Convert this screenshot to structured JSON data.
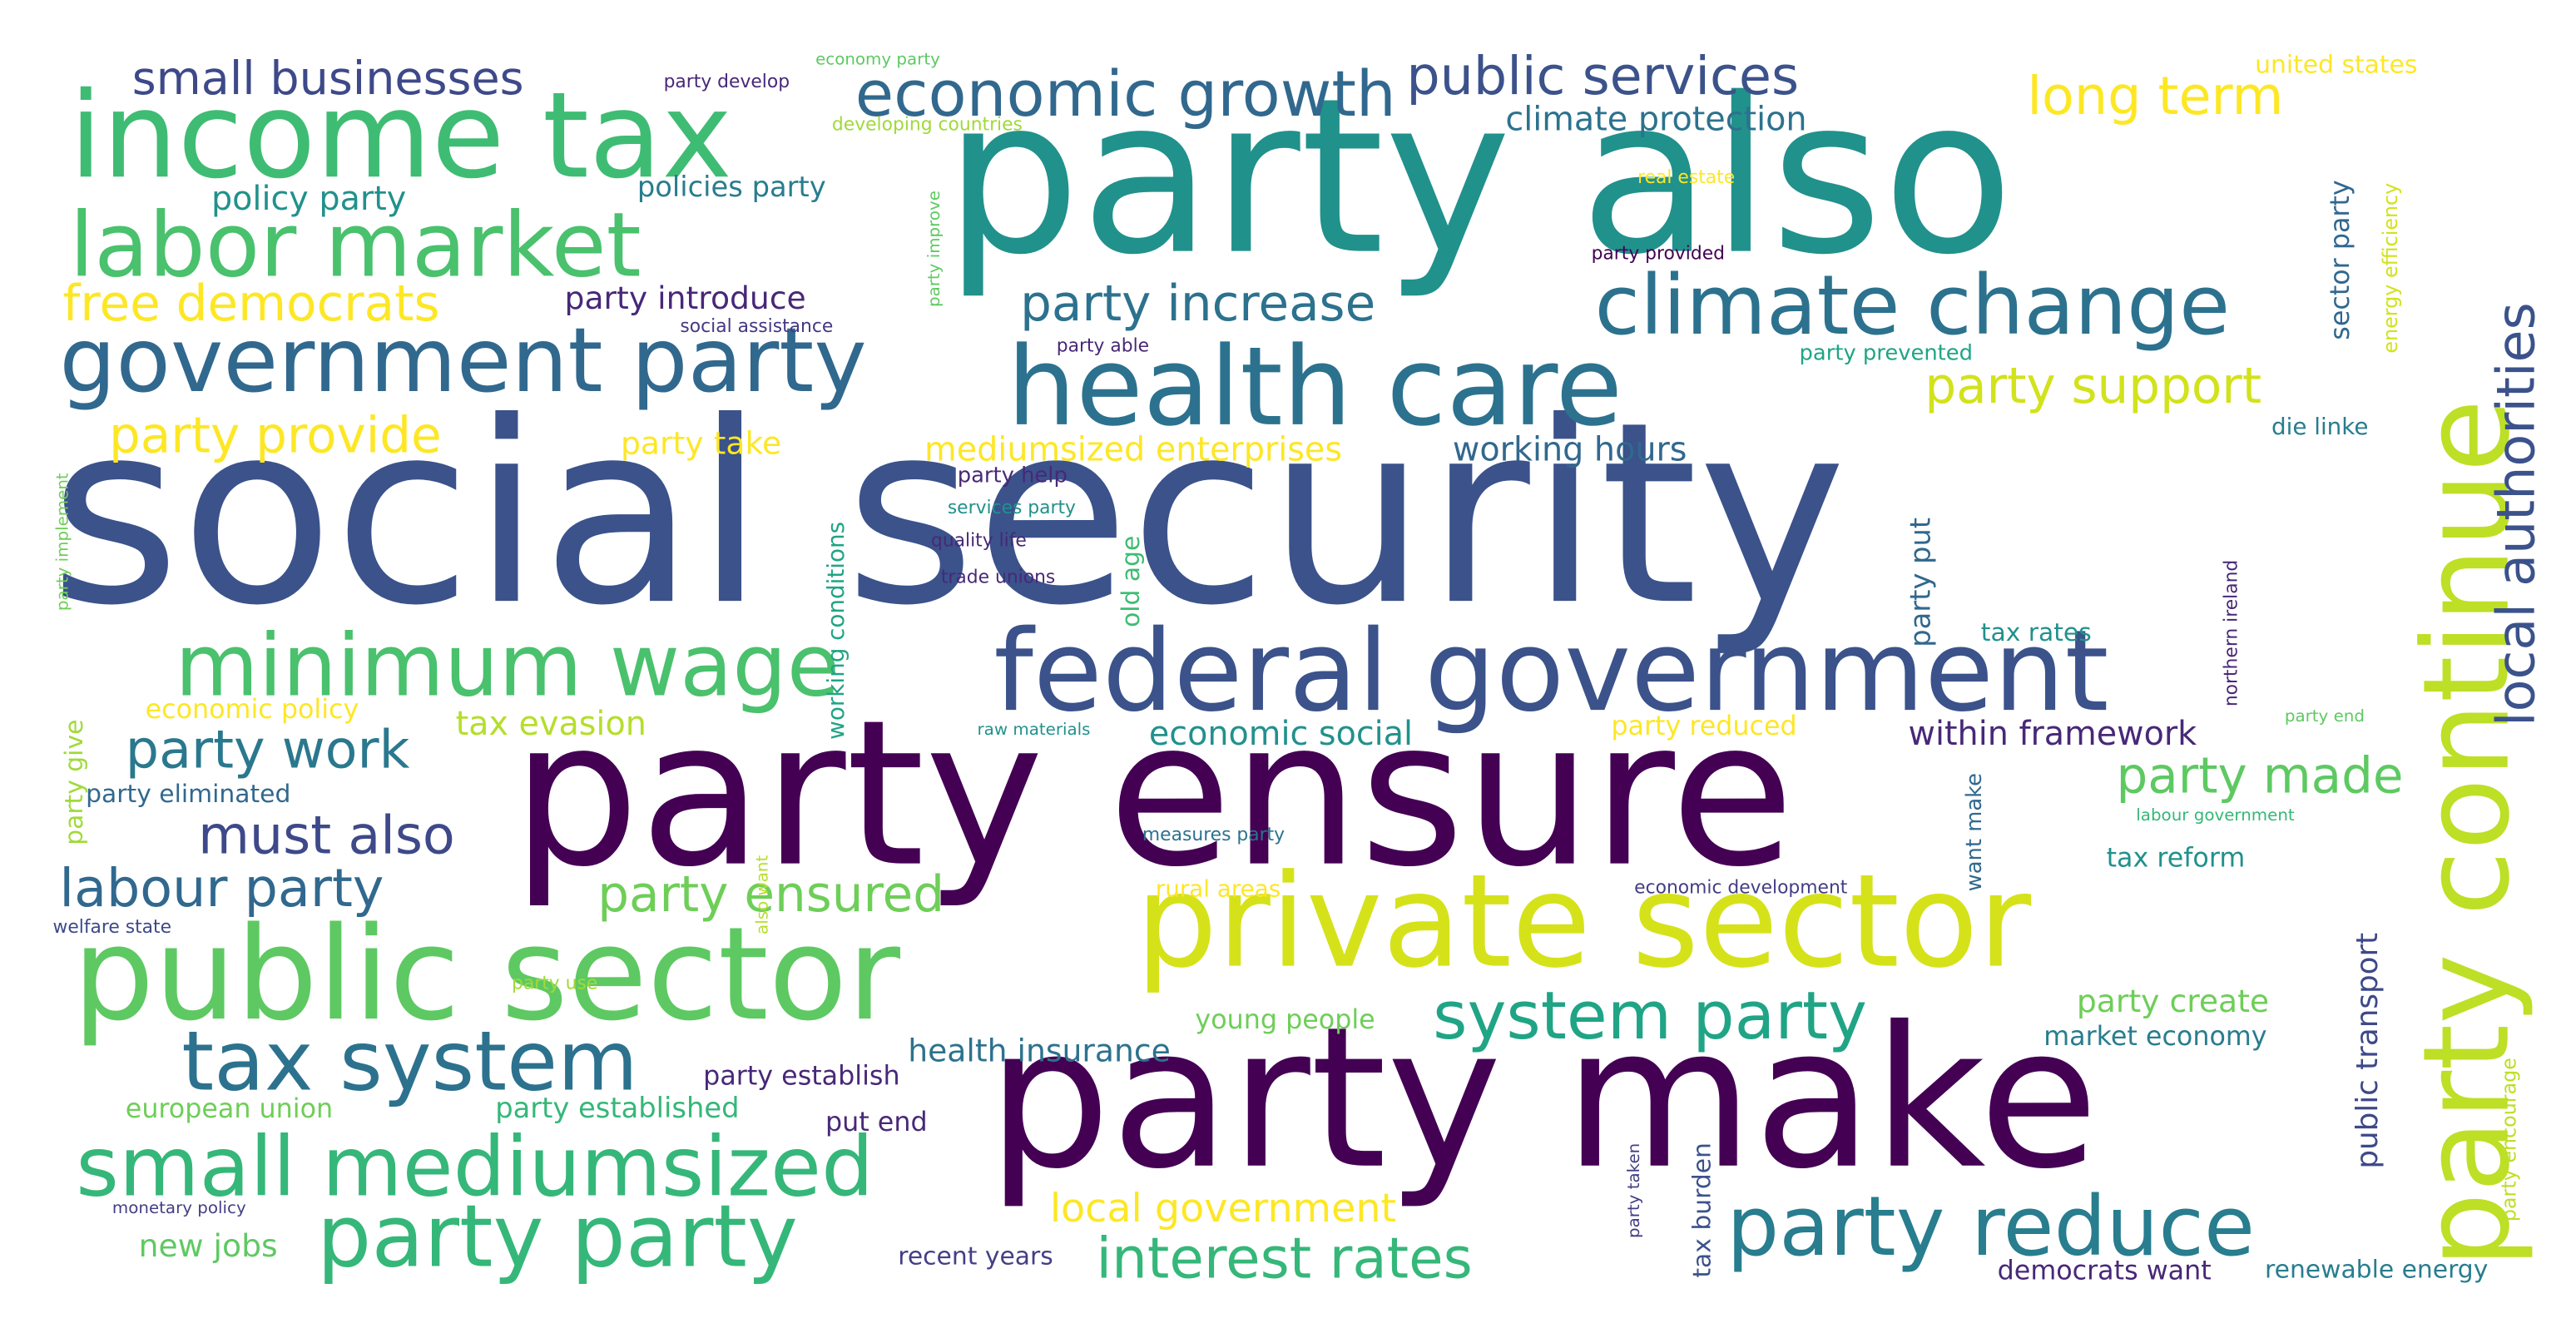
{
  "words": [
    {
      "text": "social security",
      "color": "#3b528b"
    },
    {
      "text": "party also",
      "color": "#21918c"
    },
    {
      "text": "party ensure",
      "color": "#440154"
    },
    {
      "text": "party make",
      "color": "#440154"
    },
    {
      "text": "private sector",
      "color": "#d5e21a"
    },
    {
      "text": "public sector",
      "color": "#5ec962"
    },
    {
      "text": "income tax",
      "color": "#3fbc73"
    },
    {
      "text": "health care",
      "color": "#2c728e"
    },
    {
      "text": "federal government",
      "color": "#3b528b"
    },
    {
      "text": "party continue",
      "color": "#bddf26"
    },
    {
      "text": "labor market",
      "color": "#4ac16d"
    },
    {
      "text": "government party",
      "color": "#31688e"
    },
    {
      "text": "climate change",
      "color": "#2c728e"
    },
    {
      "text": "minimum wage",
      "color": "#4ac16d"
    },
    {
      "text": "small mediumsized",
      "color": "#35b779"
    },
    {
      "text": "party party",
      "color": "#35b779"
    },
    {
      "text": "tax system",
      "color": "#2c728e"
    },
    {
      "text": "party reduce",
      "color": "#287d8e"
    },
    {
      "text": "system party",
      "color": "#20a486"
    },
    {
      "text": "economic growth",
      "color": "#31688e"
    },
    {
      "text": "public services",
      "color": "#3b528b"
    },
    {
      "text": "local authorities",
      "color": "#3b528b"
    },
    {
      "text": "interest rates",
      "color": "#35b779"
    },
    {
      "text": "party ensured",
      "color": "#6ece58"
    },
    {
      "text": "small businesses",
      "color": "#3e4989"
    },
    {
      "text": "long term",
      "color": "#fde725"
    },
    {
      "text": "party increase",
      "color": "#2c728e"
    },
    {
      "text": "party support",
      "color": "#d2e21b"
    },
    {
      "text": "free democrats",
      "color": "#fde725"
    },
    {
      "text": "party provide",
      "color": "#fde725"
    },
    {
      "text": "party work",
      "color": "#2a788e"
    },
    {
      "text": "must also",
      "color": "#3e4989"
    },
    {
      "text": "labour party",
      "color": "#31688e"
    },
    {
      "text": "party made",
      "color": "#5ec962"
    },
    {
      "text": "local government",
      "color": "#fde725"
    },
    {
      "text": "mediumsized enterprises",
      "color": "#fde725"
    },
    {
      "text": "working hours",
      "color": "#31688e"
    },
    {
      "text": "climate protection",
      "color": "#2c728e"
    },
    {
      "text": "policy party",
      "color": "#21918c"
    },
    {
      "text": "policies party",
      "color": "#287d8e"
    },
    {
      "text": "party introduce",
      "color": "#482878"
    },
    {
      "text": "party take",
      "color": "#fde725"
    },
    {
      "text": "tax evasion",
      "color": "#b5de2b"
    },
    {
      "text": "economic policy",
      "color": "#fde725"
    },
    {
      "text": "economic social",
      "color": "#21918c"
    },
    {
      "text": "within framework",
      "color": "#482878"
    },
    {
      "text": "party reduced",
      "color": "#fde725"
    },
    {
      "text": "tax reform",
      "color": "#21918c"
    },
    {
      "text": "party create",
      "color": "#6ece58"
    },
    {
      "text": "market economy",
      "color": "#287d8e"
    },
    {
      "text": "health insurance",
      "color": "#2c728e"
    },
    {
      "text": "party establish",
      "color": "#482878"
    },
    {
      "text": "party established",
      "color": "#35b779"
    },
    {
      "text": "european union",
      "color": "#6ece58"
    },
    {
      "text": "young people",
      "color": "#6ece58"
    },
    {
      "text": "rural areas",
      "color": "#fde725"
    },
    {
      "text": "put end",
      "color": "#482878"
    },
    {
      "text": "new jobs",
      "color": "#5ec962"
    },
    {
      "text": "recent years",
      "color": "#433e85"
    },
    {
      "text": "democrats want",
      "color": "#482878"
    },
    {
      "text": "renewable energy",
      "color": "#287d8e"
    },
    {
      "text": "tax rates",
      "color": "#21918c"
    },
    {
      "text": "die linke",
      "color": "#287d8e"
    },
    {
      "text": "united states",
      "color": "#fde725"
    },
    {
      "text": "party eliminated",
      "color": "#31688e"
    },
    {
      "text": "party help",
      "color": "#482878"
    },
    {
      "text": "party prevented",
      "color": "#20a486"
    },
    {
      "text": "party develop",
      "color": "#482878"
    },
    {
      "text": "economy party",
      "color": "#5ec962"
    },
    {
      "text": "developing countries",
      "color": "#a0da39"
    },
    {
      "text": "real estate",
      "color": "#fde725"
    },
    {
      "text": "party provided",
      "color": "#440154"
    },
    {
      "text": "social assistance",
      "color": "#443983"
    },
    {
      "text": "party able",
      "color": "#482878"
    },
    {
      "text": "services party",
      "color": "#21918c"
    },
    {
      "text": "quality life",
      "color": "#482878"
    },
    {
      "text": "trade unions",
      "color": "#482878"
    },
    {
      "text": "raw materials",
      "color": "#21918c"
    },
    {
      "text": "measures party",
      "color": "#2c728e"
    },
    {
      "text": "economic development",
      "color": "#433e85"
    },
    {
      "text": "labour government",
      "color": "#35b779"
    },
    {
      "text": "party end",
      "color": "#5ec962"
    },
    {
      "text": "welfare state",
      "color": "#3e4989"
    },
    {
      "text": "party use",
      "color": "#a0da39"
    },
    {
      "text": "monetary policy",
      "color": "#433e85"
    },
    {
      "text": "public transport",
      "color": "#3e4989"
    },
    {
      "text": "sector party",
      "color": "#31688e"
    },
    {
      "text": "energy efficiency",
      "color": "#d2e21b"
    },
    {
      "text": "party put",
      "color": "#31688e"
    },
    {
      "text": "northern ireland",
      "color": "#482878"
    },
    {
      "text": "want make",
      "color": "#31688e"
    },
    {
      "text": "party encourage",
      "color": "#bddf26"
    },
    {
      "text": "tax burden",
      "color": "#3b528b"
    },
    {
      "text": "party taken",
      "color": "#433e85"
    },
    {
      "text": "old age",
      "color": "#3fbc73"
    },
    {
      "text": "working conditions",
      "color": "#20a486"
    },
    {
      "text": "party improve",
      "color": "#5ec962"
    },
    {
      "text": "party implement",
      "color": "#6ece58"
    },
    {
      "text": "party give",
      "color": "#a0da39"
    },
    {
      "text": "also want",
      "color": "#b5de2b"
    }
  ]
}
